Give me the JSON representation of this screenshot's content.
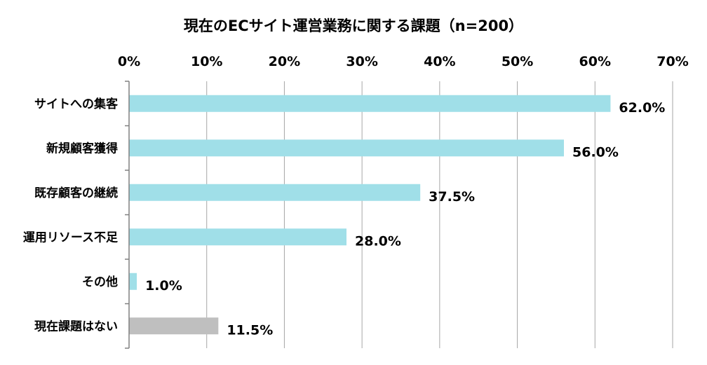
{
  "chart_data": {
    "type": "bar",
    "orientation": "horizontal",
    "title": "現在のECサイト運営業務に関する課題（n=200）",
    "categories": [
      "サイトへの集客",
      "新規顧客獲得",
      "既存顧客の継続",
      "運用リソース不足",
      "その他",
      "現在課題はない"
    ],
    "values": [
      62.0,
      56.0,
      37.5,
      28.0,
      1.0,
      11.5
    ],
    "value_labels": [
      "62.0%",
      "56.0%",
      "37.5%",
      "28.0%",
      "1.0%",
      "11.5%"
    ],
    "x_ticks": [
      0,
      10,
      20,
      30,
      40,
      50,
      60,
      70
    ],
    "x_tick_labels": [
      "0%",
      "10%",
      "20%",
      "30%",
      "40%",
      "50%",
      "60%",
      "70%"
    ],
    "xlim": [
      0,
      70
    ],
    "x_axis_position": "top",
    "grid": true,
    "bar_colors": [
      "#a0dfe8",
      "#a0dfe8",
      "#a0dfe8",
      "#a0dfe8",
      "#a0dfe8",
      "#bfbfbf"
    ],
    "gridline_color": "#a6a6a6",
    "xlabel": "",
    "ylabel": ""
  }
}
